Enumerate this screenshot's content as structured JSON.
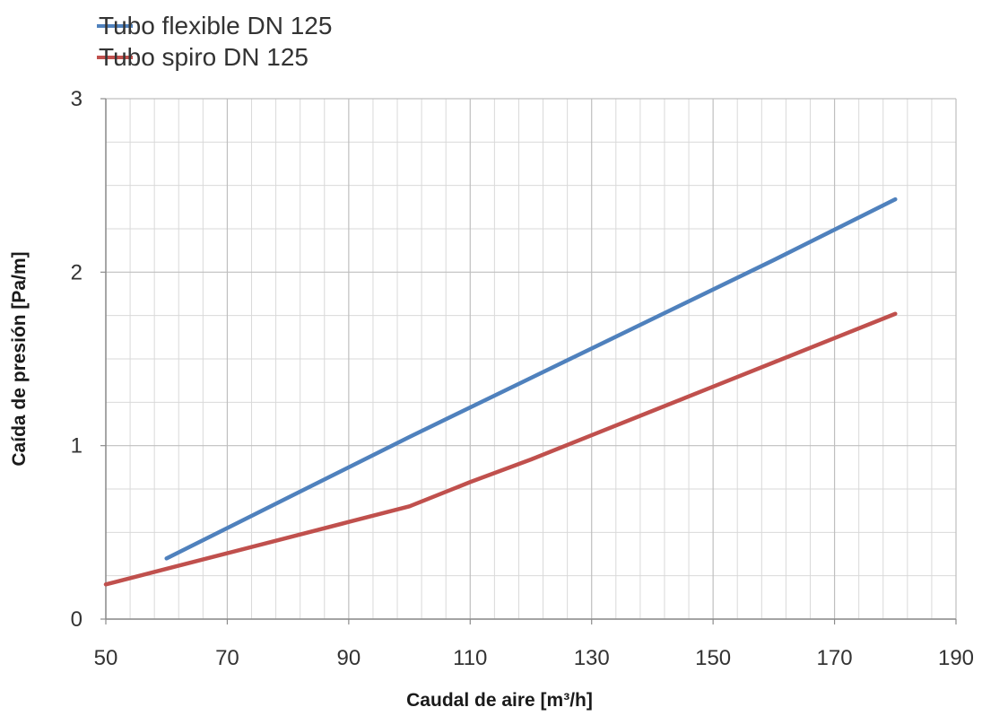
{
  "chart_data": {
    "type": "line",
    "xlabel": "Caudal de aire [m³/h]",
    "ylabel": "Caída de presión [Pa/m]",
    "xlim": [
      50,
      190
    ],
    "ylim": [
      0,
      3
    ],
    "x_ticks": [
      "50",
      "70",
      "90",
      "110",
      "130",
      "150",
      "170",
      "190"
    ],
    "y_ticks": [
      "0",
      "1",
      "2",
      "3"
    ],
    "x_tick_values": [
      50,
      70,
      90,
      110,
      130,
      150,
      170,
      190
    ],
    "y_tick_values": [
      0,
      1,
      2,
      3
    ],
    "grid": true,
    "x_minor_step": 4,
    "y_minor_step": 0.25,
    "legend_position": "top-left",
    "series": [
      {
        "name": "Tubo flexible DN 125",
        "color": "#4f81bd",
        "x": [
          60,
          80,
          100,
          120,
          140,
          160,
          180
        ],
        "y": [
          0.35,
          0.7,
          1.05,
          1.39,
          1.73,
          2.07,
          2.42
        ]
      },
      {
        "name": "Tubo spiro DN 125",
        "color": "#c0504d",
        "x": [
          50,
          60,
          70,
          80,
          90,
          100,
          110,
          120,
          130,
          140,
          150,
          160,
          170,
          180
        ],
        "y": [
          0.2,
          0.29,
          0.38,
          0.47,
          0.56,
          0.65,
          0.79,
          0.92,
          1.06,
          1.2,
          1.34,
          1.48,
          1.62,
          1.76
        ]
      }
    ]
  }
}
